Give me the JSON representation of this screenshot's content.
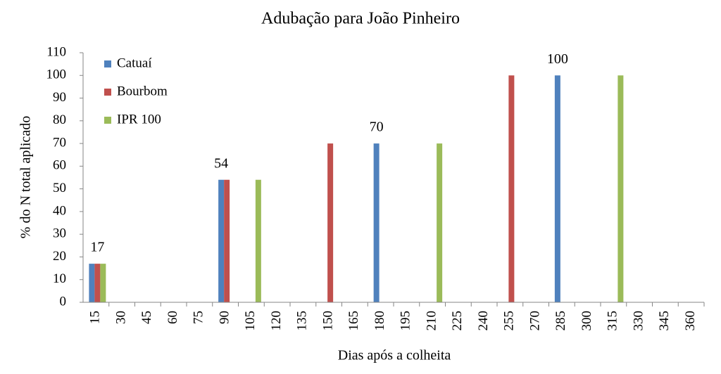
{
  "chart_data": {
    "type": "bar",
    "title": "Adubação para João Pinheiro",
    "x_label": "Dias após a colheita",
    "y_label": "% do N total aplicado",
    "categories": [
      "15",
      "30",
      "45",
      "60",
      "75",
      "90",
      "105",
      "120",
      "135",
      "150",
      "165",
      "180",
      "195",
      "210",
      "225",
      "240",
      "255",
      "270",
      "285",
      "300",
      "315",
      "330",
      "345",
      "360"
    ],
    "series": [
      {
        "name": "Catuaí",
        "color": "#4f81bd",
        "values": [
          17,
          0,
          0,
          0,
          0,
          54,
          0,
          0,
          0,
          0,
          0,
          70,
          0,
          0,
          0,
          0,
          0,
          0,
          100,
          0,
          0,
          0,
          0,
          0
        ],
        "value_labels": [
          "17",
          null,
          null,
          null,
          null,
          "54",
          null,
          null,
          null,
          null,
          null,
          "70",
          null,
          null,
          null,
          null,
          null,
          null,
          "100",
          null,
          null,
          null,
          null,
          null
        ]
      },
      {
        "name": "Bourbom",
        "color": "#c0504d",
        "values": [
          17,
          0,
          0,
          0,
          0,
          54,
          0,
          0,
          0,
          70,
          0,
          0,
          0,
          0,
          0,
          0,
          100,
          0,
          0,
          0,
          0,
          0,
          0,
          0
        ]
      },
      {
        "name": "IPR 100",
        "color": "#9bbb59",
        "values": [
          17,
          0,
          0,
          0,
          0,
          0,
          54,
          0,
          0,
          0,
          0,
          0,
          0,
          70,
          0,
          0,
          0,
          0,
          0,
          0,
          100,
          0,
          0,
          0
        ]
      }
    ],
    "ylim": [
      0,
      110
    ],
    "yticks": [
      0,
      10,
      20,
      30,
      40,
      50,
      60,
      70,
      80,
      90,
      100,
      110
    ],
    "grid": false,
    "legend": "top-left"
  }
}
